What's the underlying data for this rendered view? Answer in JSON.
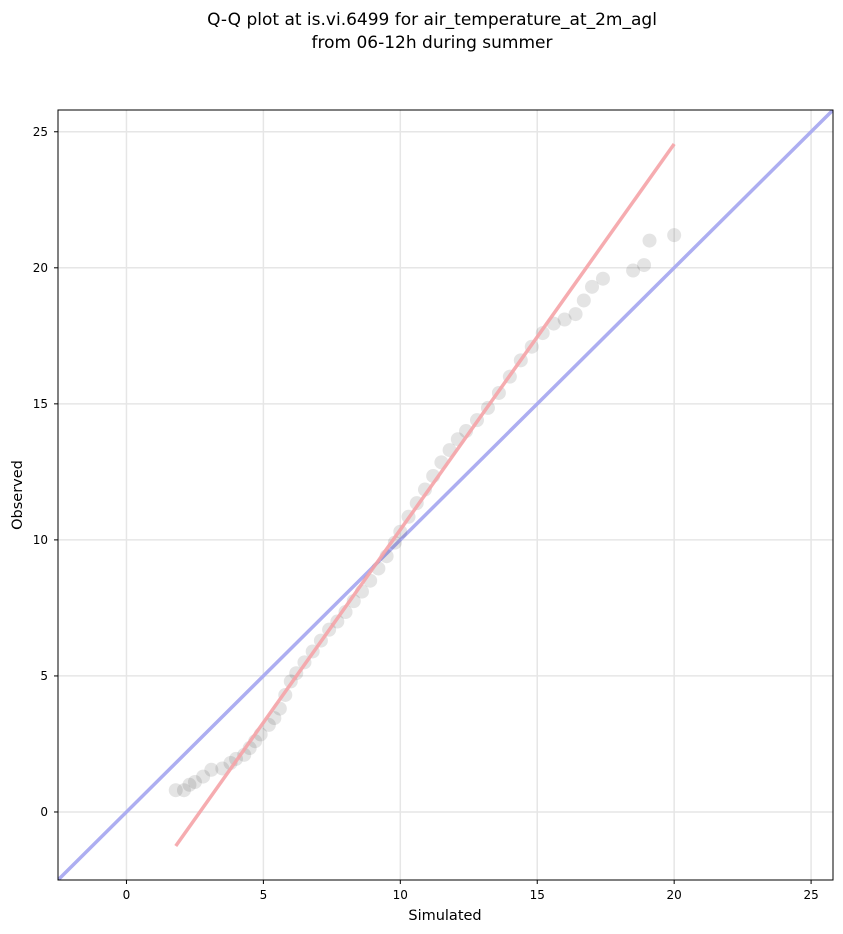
{
  "chart_data": {
    "type": "scatter",
    "title_lines": [
      "Q-Q plot at is.vi.6499 for air_temperature_at_2m_agl",
      "from 06-12h during summer"
    ],
    "xlabel": "Simulated",
    "ylabel": "Observed",
    "xlim": [
      -2.5,
      25.8
    ],
    "ylim": [
      -2.5,
      25.8
    ],
    "xticks": [
      "0",
      "5",
      "10",
      "15",
      "20",
      "25"
    ],
    "yticks": [
      "0",
      "5",
      "10",
      "15",
      "20",
      "25"
    ],
    "grid": true,
    "identity_line": {
      "color": "#a9aaf0",
      "x": [
        -2.5,
        25.8
      ],
      "y": [
        -2.5,
        25.8
      ]
    },
    "fit_line": {
      "color": "#f5a3a7",
      "x": [
        1.8,
        20.0
      ],
      "y": [
        -1.25,
        24.55
      ]
    },
    "point_color": "#1f1f1f",
    "points": [
      [
        1.8,
        0.8
      ],
      [
        2.1,
        0.8
      ],
      [
        2.3,
        1.0
      ],
      [
        2.5,
        1.1
      ],
      [
        2.8,
        1.3
      ],
      [
        3.1,
        1.55
      ],
      [
        3.5,
        1.6
      ],
      [
        3.8,
        1.8
      ],
      [
        4.0,
        1.95
      ],
      [
        4.3,
        2.1
      ],
      [
        4.5,
        2.35
      ],
      [
        4.7,
        2.6
      ],
      [
        4.9,
        2.85
      ],
      [
        5.2,
        3.2
      ],
      [
        5.4,
        3.45
      ],
      [
        5.6,
        3.8
      ],
      [
        5.8,
        4.3
      ],
      [
        6.0,
        4.8
      ],
      [
        6.2,
        5.1
      ],
      [
        6.5,
        5.5
      ],
      [
        6.8,
        5.9
      ],
      [
        7.1,
        6.3
      ],
      [
        7.4,
        6.7
      ],
      [
        7.7,
        7.0
      ],
      [
        8.0,
        7.35
      ],
      [
        8.3,
        7.75
      ],
      [
        8.6,
        8.1
      ],
      [
        8.9,
        8.5
      ],
      [
        9.2,
        8.95
      ],
      [
        9.5,
        9.4
      ],
      [
        9.8,
        9.9
      ],
      [
        10.0,
        10.3
      ],
      [
        10.3,
        10.85
      ],
      [
        10.6,
        11.35
      ],
      [
        10.9,
        11.85
      ],
      [
        11.2,
        12.35
      ],
      [
        11.5,
        12.85
      ],
      [
        11.8,
        13.3
      ],
      [
        12.1,
        13.7
      ],
      [
        12.4,
        14.0
      ],
      [
        12.8,
        14.4
      ],
      [
        13.2,
        14.85
      ],
      [
        13.6,
        15.4
      ],
      [
        14.0,
        16.0
      ],
      [
        14.4,
        16.6
      ],
      [
        14.8,
        17.1
      ],
      [
        15.2,
        17.6
      ],
      [
        15.6,
        17.95
      ],
      [
        16.0,
        18.1
      ],
      [
        16.4,
        18.3
      ],
      [
        16.7,
        18.8
      ],
      [
        17.0,
        19.3
      ],
      [
        17.4,
        19.6
      ],
      [
        18.5,
        19.9
      ],
      [
        18.9,
        20.1
      ],
      [
        19.1,
        21.0
      ],
      [
        20.0,
        21.2
      ]
    ]
  }
}
